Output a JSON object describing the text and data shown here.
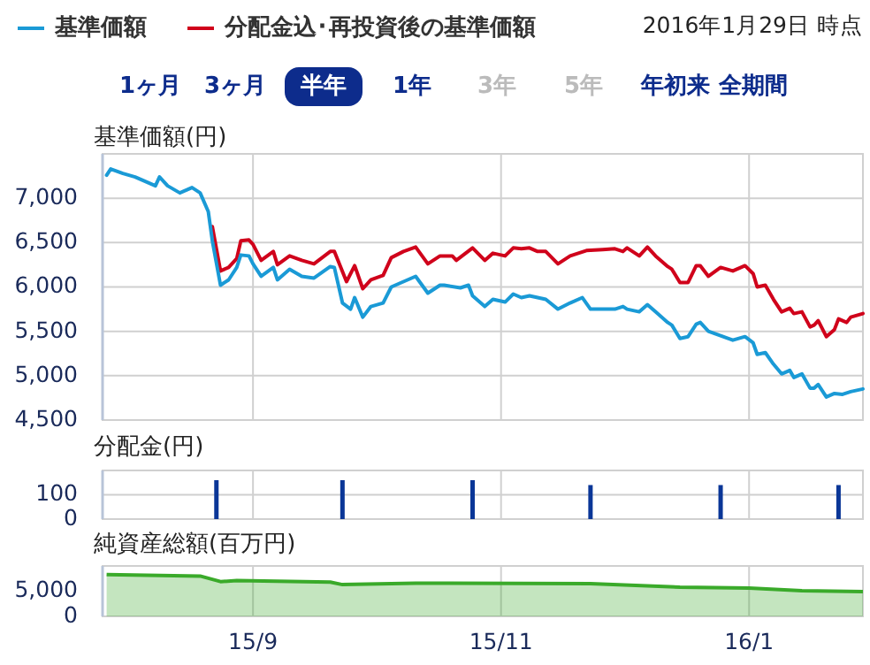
{
  "chart_data": [
    {
      "type": "line",
      "ylabel": "基準価額(円)",
      "legend": "top",
      "grid": true,
      "tick_labels": "y",
      "xlim": [
        "2015-07-26",
        "2016-01-29"
      ],
      "xticks": [
        {
          "value": "2015-09-01",
          "label": null
        },
        {
          "value": "2015-11-01",
          "label": null
        },
        {
          "value": "2016-01-01",
          "label": null
        }
      ],
      "ylim": [
        4500,
        7500
      ],
      "yticks": [
        {
          "value": 4500,
          "label": "4,500"
        },
        {
          "value": 5000,
          "label": "5,000"
        },
        {
          "value": 5500,
          "label": "5,500"
        },
        {
          "value": 6000,
          "label": "6,000"
        },
        {
          "value": 6500,
          "label": "6,500"
        },
        {
          "value": 7000,
          "label": "7,000"
        }
      ],
      "annotations": [
        "2016年1月29日 時点",
        "1ヶ月",
        "3ヶ月",
        "半年",
        "1年",
        "3年",
        "5年",
        "年初来",
        "全期間"
      ],
      "series": [
        {
          "name": "基準価額",
          "color": "#1a9ad6",
          "x": [
            "2015-07-27",
            "2015-07-28",
            "2015-07-31",
            "2015-08-03",
            "2015-08-05",
            "2015-08-08",
            "2015-08-09",
            "2015-08-11",
            "2015-08-14",
            "2015-08-17",
            "2015-08-19",
            "2015-08-21",
            "2015-08-22",
            "2015-08-24",
            "2015-08-26",
            "2015-08-28",
            "2015-08-29",
            "2015-08-31",
            "2015-09-01",
            "2015-09-03",
            "2015-09-06",
            "2015-09-07",
            "2015-09-10",
            "2015-09-13",
            "2015-09-16",
            "2015-09-20",
            "2015-09-21",
            "2015-09-23",
            "2015-09-25",
            "2015-09-26",
            "2015-09-28",
            "2015-09-30",
            "2015-10-03",
            "2015-10-05",
            "2015-10-08",
            "2015-10-11",
            "2015-10-14",
            "2015-10-17",
            "2015-10-18",
            "2015-10-22",
            "2015-10-24",
            "2015-10-25",
            "2015-10-28",
            "2015-10-30",
            "2015-11-02",
            "2015-11-04",
            "2015-11-06",
            "2015-11-08",
            "2015-11-12",
            "2015-11-15",
            "2015-11-18",
            "2015-11-21",
            "2015-11-23",
            "2015-11-29",
            "2015-12-01",
            "2015-12-02",
            "2015-12-05",
            "2015-12-07",
            "2015-12-09",
            "2015-12-12",
            "2015-12-13",
            "2015-12-15",
            "2015-12-17",
            "2015-12-19",
            "2015-12-20",
            "2015-12-22",
            "2015-12-25",
            "2015-12-28",
            "2015-12-31",
            "2016-01-02",
            "2016-01-03",
            "2016-01-05",
            "2016-01-07",
            "2016-01-09",
            "2016-01-11",
            "2016-01-12",
            "2016-01-14",
            "2016-01-16",
            "2016-01-17",
            "2016-01-18",
            "2016-01-20",
            "2016-01-22",
            "2016-01-24",
            "2016-01-26",
            "2016-01-29"
          ],
          "values": [
            7260,
            7330,
            7280,
            7240,
            7200,
            7140,
            7240,
            7140,
            7060,
            7120,
            7060,
            6850,
            6520,
            6020,
            6080,
            6220,
            6360,
            6350,
            6260,
            6120,
            6220,
            6080,
            6200,
            6120,
            6100,
            6230,
            6220,
            5820,
            5750,
            5880,
            5660,
            5780,
            5820,
            6000,
            6060,
            6120,
            5930,
            6020,
            6020,
            5990,
            6020,
            5900,
            5780,
            5860,
            5830,
            5920,
            5880,
            5900,
            5860,
            5750,
            5820,
            5880,
            5750,
            5750,
            5780,
            5750,
            5720,
            5800,
            5720,
            5600,
            5570,
            5420,
            5440,
            5580,
            5600,
            5500,
            5450,
            5400,
            5440,
            5370,
            5240,
            5260,
            5130,
            5020,
            5060,
            4980,
            5020,
            4860,
            4860,
            4900,
            4760,
            4800,
            4790,
            4820,
            4850
          ]
        },
        {
          "name": "分配金込･再投資後の基準価額",
          "color": "#d0021b",
          "x": [
            "2015-08-22",
            "2015-08-24",
            "2015-08-26",
            "2015-08-28",
            "2015-08-29",
            "2015-08-31",
            "2015-09-01",
            "2015-09-03",
            "2015-09-06",
            "2015-09-07",
            "2015-09-10",
            "2015-09-13",
            "2015-09-16",
            "2015-09-20",
            "2015-09-21",
            "2015-09-24",
            "2015-09-26",
            "2015-09-28",
            "2015-09-30",
            "2015-10-03",
            "2015-10-05",
            "2015-10-08",
            "2015-10-11",
            "2015-10-14",
            "2015-10-17",
            "2015-10-18",
            "2015-10-20",
            "2015-10-21",
            "2015-10-25",
            "2015-10-28",
            "2015-10-30",
            "2015-11-02",
            "2015-11-04",
            "2015-11-06",
            "2015-11-08",
            "2015-11-10",
            "2015-11-12",
            "2015-11-15",
            "2015-11-18",
            "2015-11-22",
            "2015-11-26",
            "2015-11-29",
            "2015-12-01",
            "2015-12-02",
            "2015-12-05",
            "2015-12-07",
            "2015-12-09",
            "2015-12-12",
            "2015-12-13",
            "2015-12-15",
            "2015-12-17",
            "2015-12-19",
            "2015-12-20",
            "2015-12-22",
            "2015-12-25",
            "2015-12-28",
            "2015-12-31",
            "2016-01-02",
            "2016-01-03",
            "2016-01-05",
            "2016-01-07",
            "2016-01-09",
            "2016-01-11",
            "2016-01-12",
            "2016-01-14",
            "2016-01-16",
            "2016-01-17",
            "2016-01-18",
            "2016-01-20",
            "2016-01-22",
            "2016-01-23",
            "2016-01-25",
            "2016-01-26",
            "2016-01-29"
          ],
          "values": [
            6680,
            6180,
            6220,
            6320,
            6520,
            6530,
            6480,
            6300,
            6400,
            6250,
            6350,
            6300,
            6260,
            6400,
            6400,
            6060,
            6240,
            5980,
            6080,
            6130,
            6330,
            6400,
            6450,
            6260,
            6350,
            6350,
            6350,
            6300,
            6440,
            6300,
            6380,
            6350,
            6440,
            6430,
            6440,
            6400,
            6400,
            6260,
            6350,
            6410,
            6420,
            6430,
            6400,
            6440,
            6350,
            6450,
            6350,
            6230,
            6200,
            6050,
            6050,
            6240,
            6240,
            6120,
            6220,
            6180,
            6240,
            6150,
            6000,
            6020,
            5860,
            5720,
            5760,
            5700,
            5720,
            5550,
            5570,
            5620,
            5440,
            5520,
            5640,
            5600,
            5660,
            5700
          ]
        }
      ]
    },
    {
      "type": "bar",
      "ylabel": "分配金(円)",
      "grid": true,
      "tick_labels": "y",
      "xlim": [
        "2015-07-26",
        "2016-01-29"
      ],
      "xticks": [
        {
          "value": "2015-09-01",
          "label": null
        },
        {
          "value": "2015-11-01",
          "label": null
        },
        {
          "value": "2016-01-01",
          "label": null
        }
      ],
      "ylim": [
        0,
        200
      ],
      "yticks": [
        {
          "value": 0,
          "label": "0"
        },
        {
          "value": 100,
          "label": "100"
        }
      ],
      "color": "#0a3697",
      "x": [
        "2015-08-23",
        "2015-09-23",
        "2015-10-25",
        "2015-11-23",
        "2015-12-25",
        "2016-01-23"
      ],
      "values": [
        160,
        160,
        160,
        140,
        140,
        140
      ]
    },
    {
      "type": "area",
      "ylabel": "純資産総額(百万円)",
      "grid": "x",
      "xlim": [
        "2015-07-26",
        "2016-01-29"
      ],
      "xticks": [
        {
          "value": "2015-09-01",
          "label": "15/9"
        },
        {
          "value": "2015-11-01",
          "label": "15/11"
        },
        {
          "value": "2016-01-01",
          "label": "16/1"
        }
      ],
      "ylim": [
        0,
        10000
      ],
      "yticks": [
        0,
        {
          "value": 5000,
          "label": "5,000"
        }
      ],
      "color": "#3aaa2a",
      "x": [
        "2015-07-27",
        "2015-08-19",
        "2015-08-24",
        "2015-08-28",
        "2015-09-20",
        "2015-09-23",
        "2015-10-11",
        "2015-11-23",
        "2015-12-15",
        "2016-01-01",
        "2016-01-14",
        "2016-01-29"
      ],
      "values": [
        8300,
        8000,
        6900,
        7100,
        6800,
        6300,
        6600,
        6500,
        5800,
        5600,
        5100,
        4900
      ]
    }
  ]
}
